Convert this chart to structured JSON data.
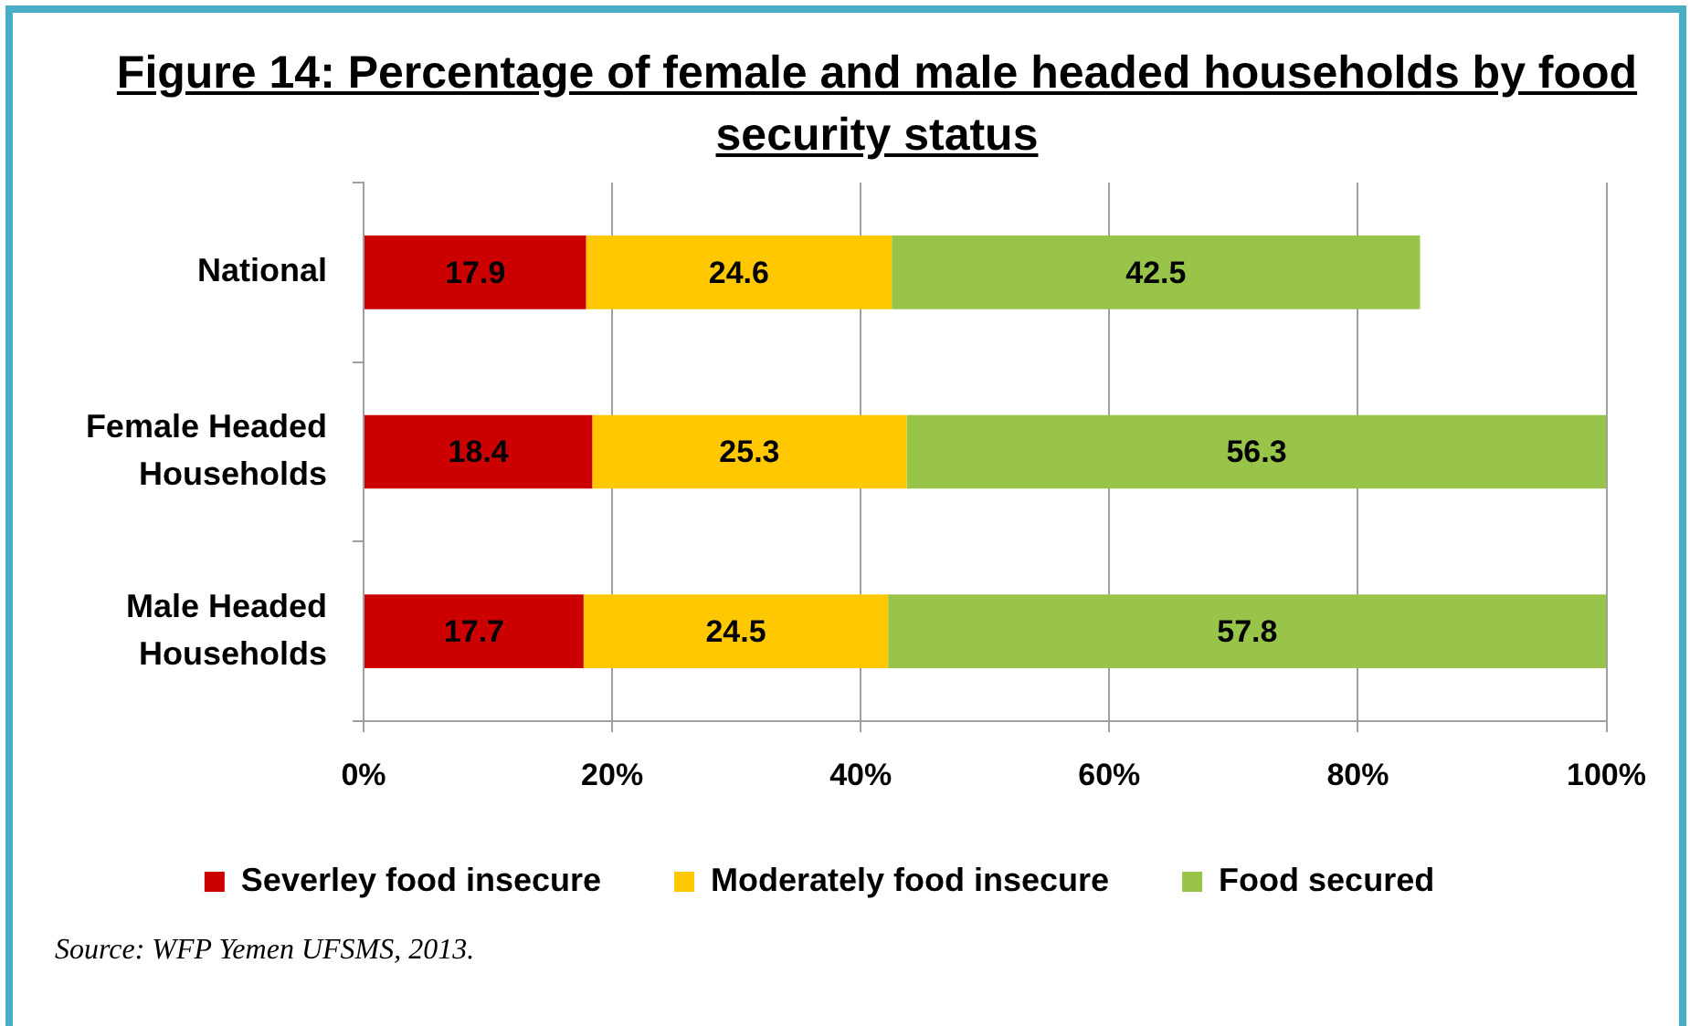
{
  "chart_data": {
    "type": "bar",
    "orientation": "horizontal",
    "stacked": true,
    "title": "Figure 14: Percentage of female and male headed households by food security status",
    "categories": [
      "National",
      "Female Headed Households",
      "Male Headed Households"
    ],
    "series": [
      {
        "name": "Severley food insecure",
        "color": "#cc0000",
        "values": [
          17.9,
          18.4,
          17.7
        ]
      },
      {
        "name": "Moderately food insecure",
        "color": "#ffc800",
        "values": [
          24.6,
          25.3,
          24.5
        ]
      },
      {
        "name": "Food secured",
        "color": "#98c449",
        "values": [
          42.5,
          56.3,
          57.8
        ]
      }
    ],
    "xlim": [
      0,
      100
    ],
    "xticks": [
      {
        "value": 0,
        "label": "0%"
      },
      {
        "value": 20,
        "label": "20%"
      },
      {
        "value": 40,
        "label": "40%"
      },
      {
        "value": 60,
        "label": "60%"
      },
      {
        "value": 80,
        "label": "80%"
      },
      {
        "value": 100,
        "label": "100%"
      }
    ],
    "grid": "x",
    "legend": "bottom",
    "data_labels": true,
    "annotations": [
      "Source: WFP Yemen UFSMS, 2013."
    ]
  }
}
